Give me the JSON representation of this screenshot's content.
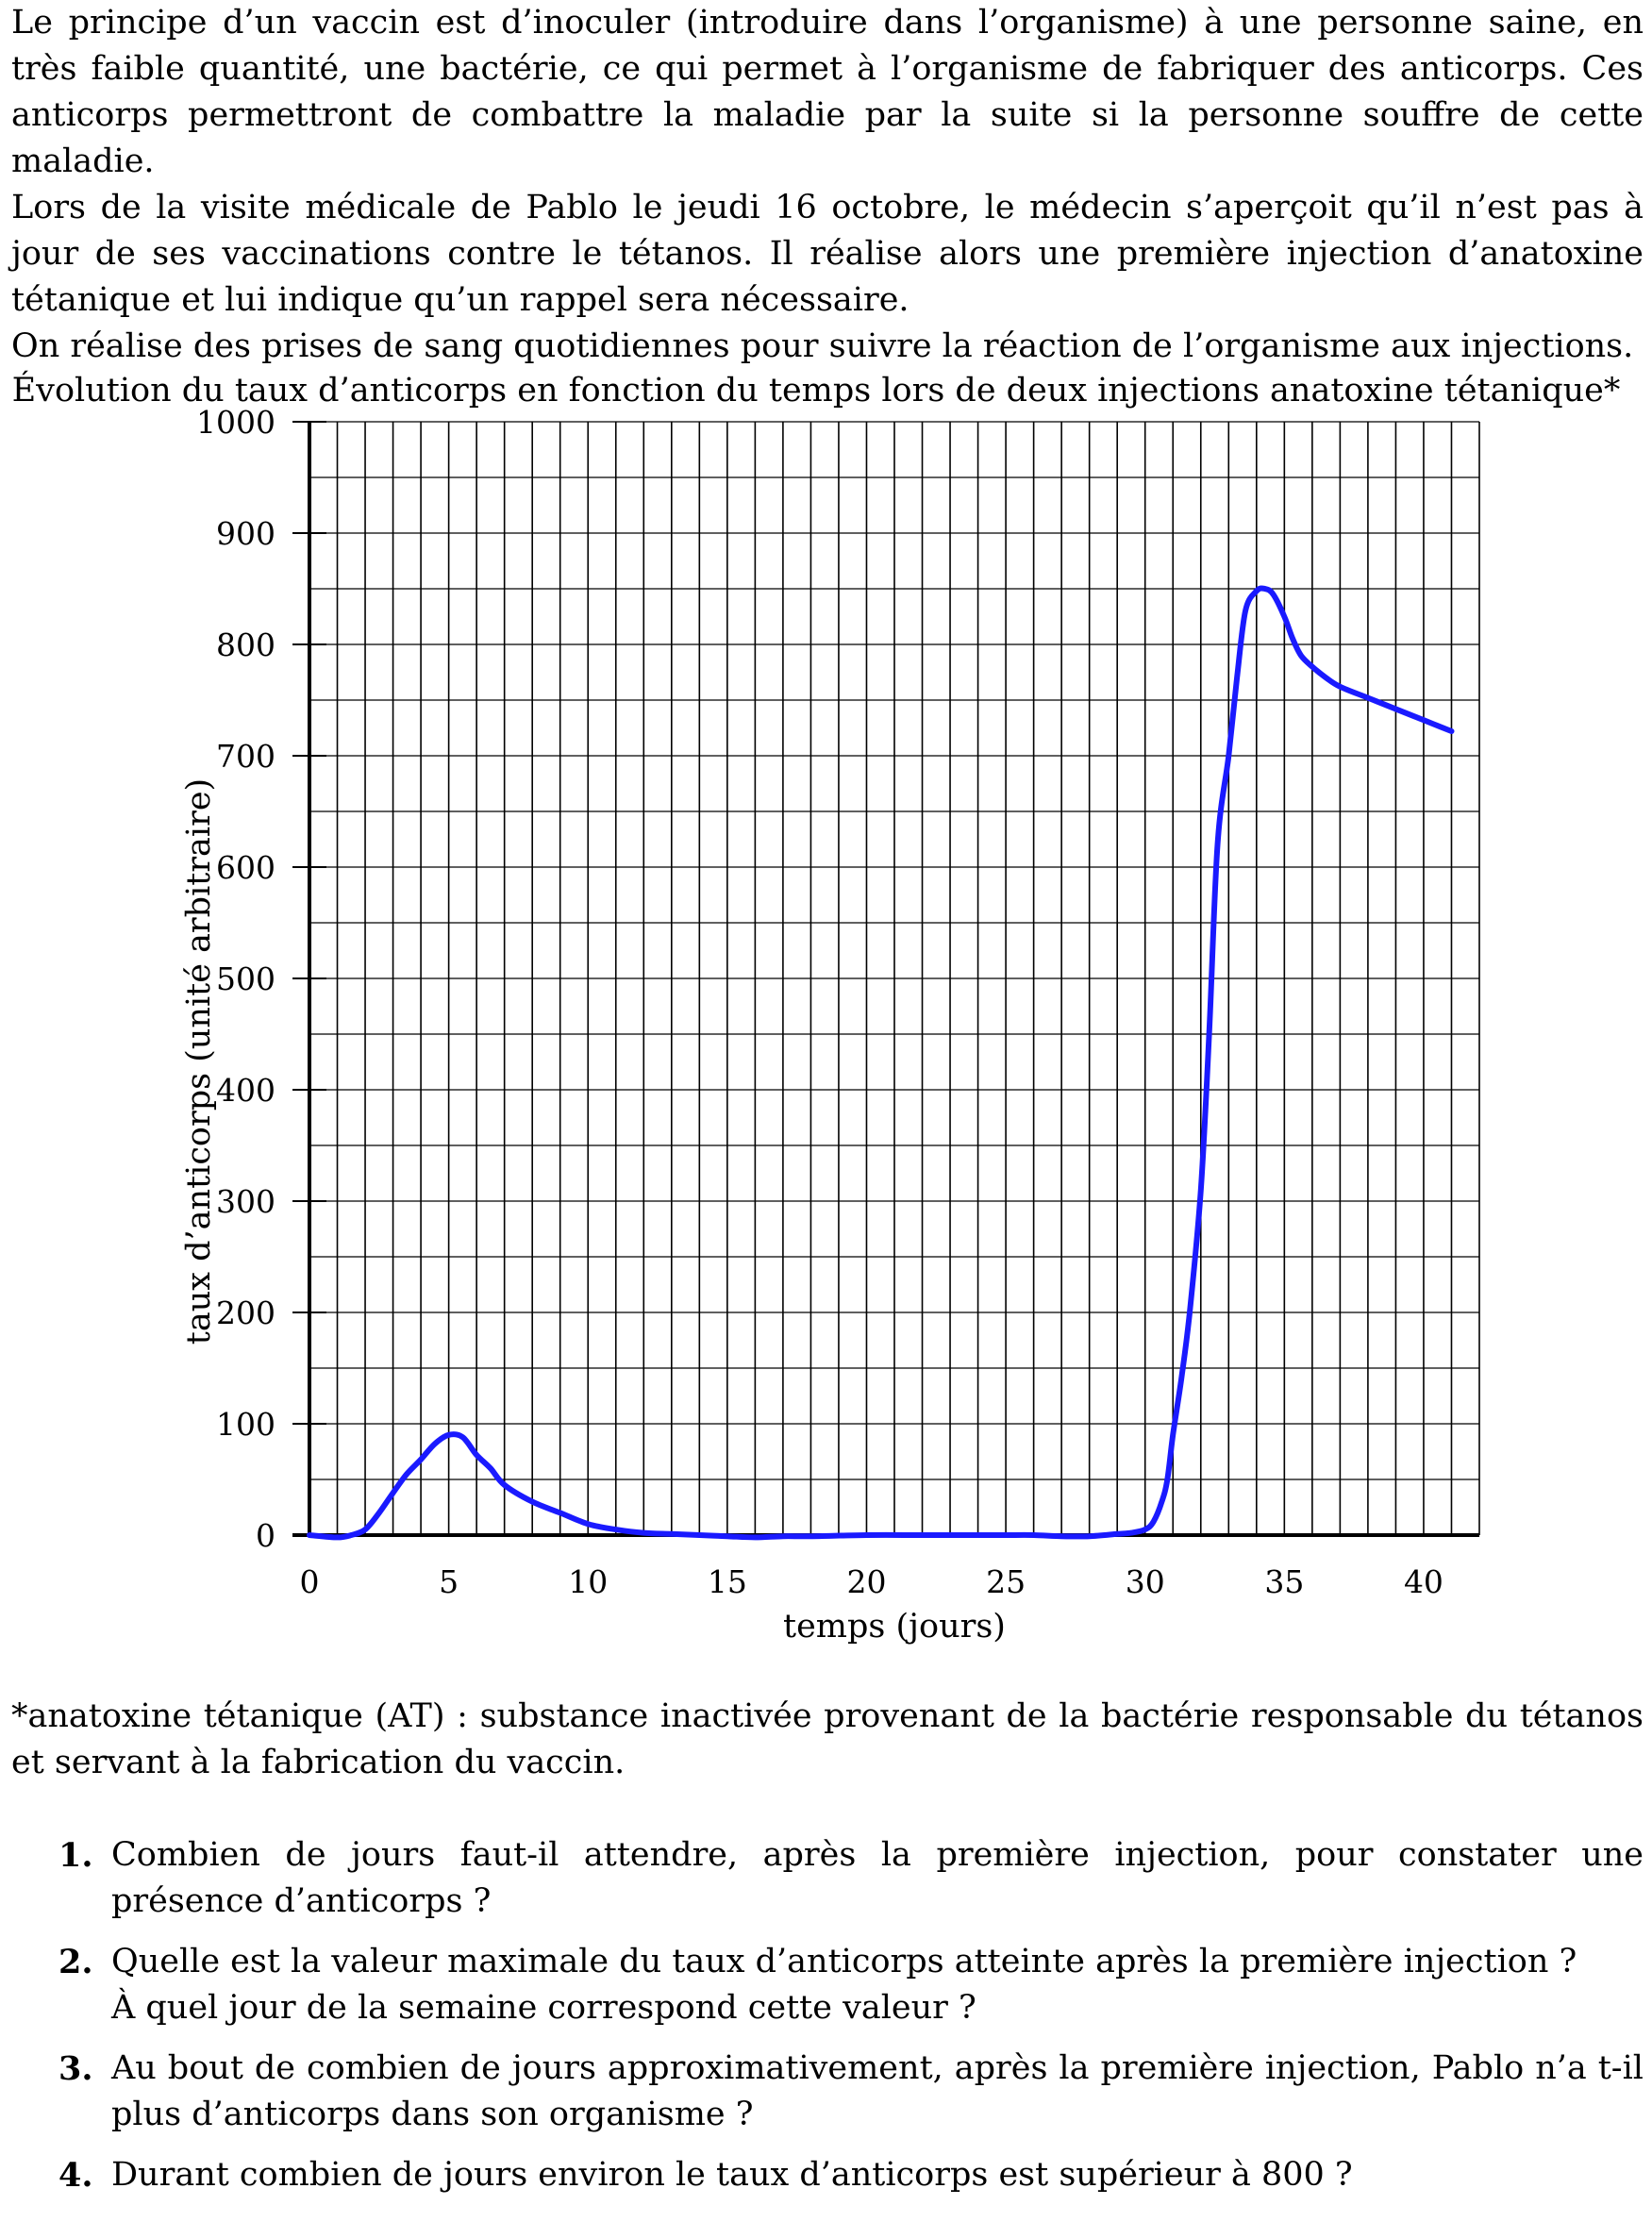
{
  "intro": [
    "Le principe d’un vaccin est d’inoculer (introduire dans l’organisme) à une personne saine, en très faible quantité, une bactérie, ce qui permet à l’organisme de fabriquer des anticorps. Ces anticorps permettront de combattre la maladie par la suite si la personne souffre de cette maladie.",
    "Lors de la visite médicale de Pablo le jeudi 16 octobre, le médecin s’aperçoit qu’il n’est pas à jour de ses vaccinations contre le tétanos. Il réalise alors une première injection d’anatoxine tétanique et lui indique qu’un rappel sera nécessaire.",
    "On réalise des prises de sang quotidiennes pour suivre la réaction de l’organisme aux injections."
  ],
  "chart_data": {
    "type": "line",
    "title": "Évolution du taux d’anticorps en fonction du temps lors de deux injections anatoxine tétanique*",
    "xlabel": "temps (jours)",
    "ylabel": "taux d’anticorps (unité arbitraire)",
    "xlim": [
      0,
      42
    ],
    "ylim": [
      0,
      1000
    ],
    "x_ticks": [
      0,
      5,
      10,
      15,
      20,
      25,
      30,
      35,
      40
    ],
    "y_ticks": [
      0,
      100,
      200,
      300,
      400,
      500,
      600,
      700,
      800,
      900,
      1000
    ],
    "grid": true,
    "line_color": "#1a1aff",
    "series": [
      {
        "x": [
          0,
          1,
          1.5,
          2,
          2.5,
          3,
          3.5,
          4,
          4.5,
          5,
          5.5,
          6,
          6.5,
          7,
          8,
          9,
          10,
          11,
          12,
          13,
          14,
          15,
          16,
          17,
          18,
          20,
          22,
          24,
          25,
          26,
          27,
          28,
          29,
          29.5,
          30,
          30.3,
          30.6,
          30.8,
          31,
          31.3,
          31.6,
          32,
          32.3,
          32.6,
          33,
          33.3,
          33.6,
          34,
          34.3,
          34.6,
          35,
          35.3,
          35.6,
          36,
          36.5,
          37,
          38,
          39,
          40,
          41
        ],
        "y": [
          0,
          -2,
          0,
          5,
          20,
          38,
          55,
          68,
          82,
          90,
          88,
          72,
          60,
          45,
          30,
          20,
          10,
          5,
          2,
          1,
          0,
          -1,
          -2,
          -1,
          -1,
          0,
          0,
          0,
          0,
          0,
          -1,
          -1,
          1,
          2,
          5,
          12,
          30,
          50,
          90,
          140,
          200,
          310,
          450,
          620,
          700,
          770,
          830,
          848,
          850,
          845,
          825,
          805,
          790,
          780,
          770,
          762,
          752,
          742,
          732,
          722
        ]
      }
    ]
  },
  "footnote": [
    "*anatoxine tétanique (AT) : substance inactivée provenant de la bactérie responsable du tétanos et servant à la fabrication du vaccin."
  ],
  "questions": [
    {
      "num": "1.",
      "lines": [
        "Combien de jours faut-il attendre, après la première injection, pour constater une présence d’anticorps ?"
      ]
    },
    {
      "num": "2.",
      "lines": [
        "Quelle est la valeur maximale du taux d’anticorps atteinte après la première injection ?",
        "À quel jour de la semaine correspond cette valeur ?"
      ]
    },
    {
      "num": "3.",
      "lines": [
        "Au bout de combien de jours approximativement, après la première injection, Pablo n’a t-il plus d’anticorps dans son organisme ?"
      ]
    },
    {
      "num": "4.",
      "lines": [
        "Durant combien de jours environ le taux d’anticorps est supérieur à 800 ?"
      ]
    }
  ]
}
